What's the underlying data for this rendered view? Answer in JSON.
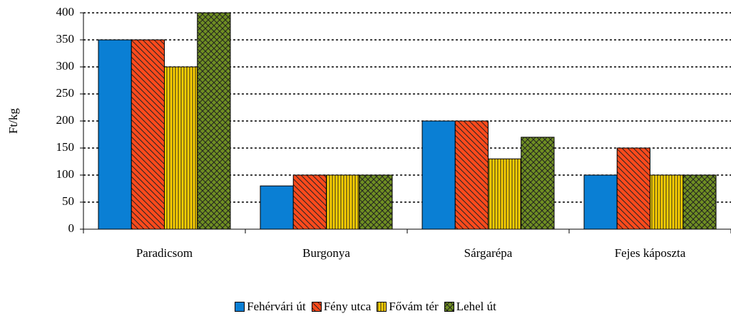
{
  "chart_data": {
    "type": "bar",
    "y_label": "Ft/kg",
    "categories": [
      "Paradicsom",
      "Burgonya",
      "Sárgarépa",
      "Fejes káposzta"
    ],
    "series": [
      {
        "name": "Fehérvári út",
        "color": "#0a7fd4",
        "pattern": "solid",
        "values": [
          350,
          80,
          200,
          100
        ]
      },
      {
        "name": "Fény utca",
        "color": "#ff4a1c",
        "pattern": "diagonal",
        "values": [
          350,
          100,
          200,
          150
        ]
      },
      {
        "name": "Fővám tér",
        "color": "#ffd200",
        "pattern": "vertical",
        "values": [
          300,
          100,
          130,
          100
        ]
      },
      {
        "name": "Lehel út",
        "color": "#6f8f22",
        "pattern": "crosshatch",
        "values": [
          400,
          100,
          170,
          100
        ]
      }
    ],
    "ylim": [
      0,
      400
    ],
    "yticks": [
      0,
      50,
      100,
      150,
      200,
      250,
      300,
      350,
      400
    ],
    "grid": true,
    "legend": "bottom"
  }
}
